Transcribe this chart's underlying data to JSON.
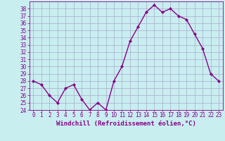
{
  "x": [
    0,
    1,
    2,
    3,
    4,
    5,
    6,
    7,
    8,
    9,
    10,
    11,
    12,
    13,
    14,
    15,
    16,
    17,
    18,
    19,
    20,
    21,
    22,
    23
  ],
  "y": [
    28.0,
    27.5,
    26.0,
    25.0,
    27.0,
    27.5,
    25.5,
    24.0,
    25.0,
    24.0,
    28.0,
    30.0,
    33.5,
    35.5,
    37.5,
    38.5,
    37.5,
    38.0,
    37.0,
    36.5,
    34.5,
    32.5,
    29.0,
    28.0
  ],
  "line_color": "#880088",
  "marker": "D",
  "marker_size": 2,
  "bg_color": "#c8eef0",
  "grid_color": "#aaaacc",
  "xlabel": "Windchill (Refroidissement éolien,°C)",
  "xlabel_color": "#880088",
  "tick_color": "#880088",
  "ylim": [
    24,
    39
  ],
  "xlim": [
    -0.5,
    23.5
  ],
  "yticks": [
    24,
    25,
    26,
    27,
    28,
    29,
    30,
    31,
    32,
    33,
    34,
    35,
    36,
    37,
    38
  ],
  "xticks": [
    0,
    1,
    2,
    3,
    4,
    5,
    6,
    7,
    8,
    9,
    10,
    11,
    12,
    13,
    14,
    15,
    16,
    17,
    18,
    19,
    20,
    21,
    22,
    23
  ],
  "tick_fontsize": 5.5,
  "xlabel_fontsize": 6.5,
  "linewidth": 1.0
}
